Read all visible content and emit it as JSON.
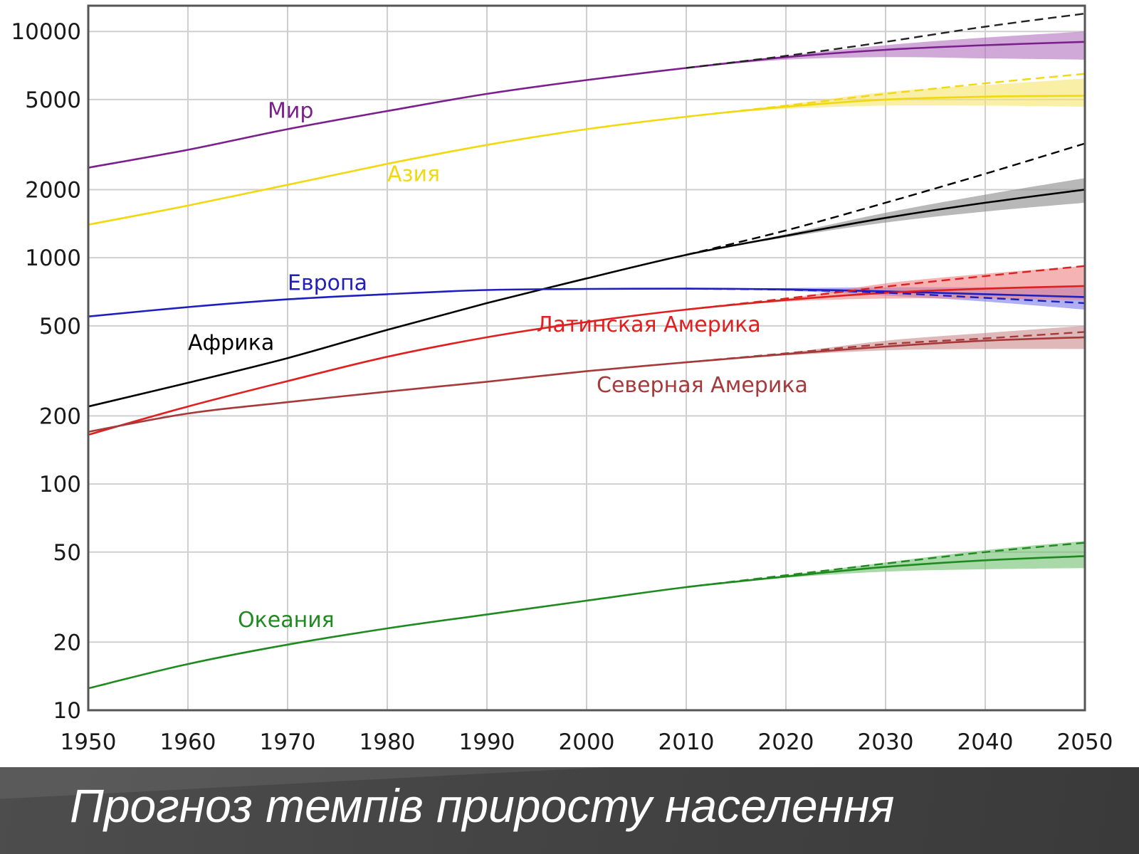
{
  "slide": {
    "title": "Прогноз темпів приросту населення"
  },
  "chart_data": {
    "type": "line",
    "y_scale": "log",
    "ylim": [
      10,
      13000
    ],
    "xlim": [
      1950,
      2050
    ],
    "grid": true,
    "x_ticks": [
      1950,
      1960,
      1970,
      1980,
      1990,
      2000,
      2010,
      2020,
      2030,
      2040,
      2050
    ],
    "y_ticks": [
      10,
      20,
      50,
      100,
      200,
      500,
      1000,
      2000,
      5000,
      10000
    ],
    "x": [
      1950,
      1960,
      1970,
      1980,
      1990,
      2000,
      2010,
      2020,
      2030,
      2040,
      2050
    ],
    "series": [
      {
        "name": "Мир",
        "color": "#7b1f8c",
        "band_color": "#b070c0",
        "values": [
          2500,
          3000,
          3700,
          4450,
          5300,
          6100,
          6900,
          7700,
          8300,
          8700,
          9000
        ],
        "dashed_upper": [
          null,
          null,
          null,
          null,
          null,
          null,
          6900,
          7800,
          9000,
          10500,
          12000
        ],
        "band_low": [
          null,
          null,
          null,
          null,
          null,
          null,
          null,
          7500,
          7700,
          7600,
          7500
        ],
        "band_high": [
          null,
          null,
          null,
          null,
          null,
          null,
          null,
          7800,
          8700,
          9400,
          10000
        ]
      },
      {
        "name": "Азия",
        "color": "#f2d80f",
        "band_color": "#f5e46a",
        "values": [
          1400,
          1700,
          2100,
          2600,
          3150,
          3700,
          4200,
          4650,
          5000,
          5150,
          5200
        ],
        "dashed_upper": [
          null,
          null,
          null,
          null,
          null,
          null,
          4200,
          4700,
          5300,
          5900,
          6500
        ],
        "band_low": [
          null,
          null,
          null,
          null,
          null,
          null,
          null,
          4550,
          4700,
          4700,
          4650
        ],
        "band_high": [
          null,
          null,
          null,
          null,
          null,
          null,
          null,
          4750,
          5400,
          5800,
          6200
        ]
      },
      {
        "name": "Африка",
        "color": "#000000",
        "band_color": "#888888",
        "values": [
          220,
          280,
          360,
          480,
          630,
          810,
          1030,
          1250,
          1500,
          1750,
          2000
        ],
        "dashed_upper": [
          null,
          null,
          null,
          null,
          null,
          null,
          1030,
          1320,
          1750,
          2350,
          3200
        ],
        "band_low": [
          null,
          null,
          null,
          null,
          null,
          null,
          null,
          1230,
          1430,
          1600,
          1750
        ],
        "band_high": [
          null,
          null,
          null,
          null,
          null,
          null,
          null,
          1270,
          1580,
          1900,
          2250
        ]
      },
      {
        "name": "Европа",
        "color": "#1f1fbf",
        "band_color": "#7a7ae8",
        "values": [
          550,
          605,
          655,
          690,
          720,
          728,
          730,
          725,
          710,
          690,
          670
        ],
        "dashed_upper": [
          null,
          null,
          null,
          null,
          null,
          null,
          730,
          722,
          700,
          665,
          630
        ],
        "band_low": [
          null,
          null,
          null,
          null,
          null,
          null,
          null,
          715,
          680,
          640,
          590
        ],
        "band_high": [
          null,
          null,
          null,
          null,
          null,
          null,
          null,
          735,
          740,
          740,
          740
        ]
      },
      {
        "name": "Латинская Америка",
        "color": "#e01f1f",
        "band_color": "#f08080",
        "values": [
          165,
          220,
          285,
          365,
          445,
          520,
          590,
          650,
          700,
          730,
          750
        ],
        "dashed_upper": [
          null,
          null,
          null,
          null,
          null,
          null,
          590,
          660,
          745,
          830,
          920
        ],
        "band_low": [
          null,
          null,
          null,
          null,
          null,
          null,
          null,
          640,
          660,
          660,
          650
        ],
        "band_high": [
          null,
          null,
          null,
          null,
          null,
          null,
          null,
          660,
          770,
          850,
          920
        ]
      },
      {
        "name": "Северная Америка",
        "color": "#a63a3a",
        "band_color": "#c98a8a",
        "values": [
          170,
          205,
          230,
          256,
          283,
          315,
          345,
          375,
          405,
          430,
          445
        ],
        "dashed_upper": [
          null,
          null,
          null,
          null,
          null,
          null,
          345,
          378,
          415,
          440,
          470
        ],
        "band_low": [
          null,
          null,
          null,
          null,
          null,
          null,
          null,
          370,
          390,
          395,
          395
        ],
        "band_high": [
          null,
          null,
          null,
          null,
          null,
          null,
          null,
          380,
          430,
          465,
          500
        ]
      },
      {
        "name": "Океания",
        "color": "#1f8a1f",
        "band_color": "#70c070",
        "values": [
          12.5,
          16,
          19.5,
          23,
          26.5,
          30.5,
          35,
          39,
          43,
          46,
          48
        ],
        "dashed_upper": [
          null,
          null,
          null,
          null,
          null,
          null,
          35,
          39.5,
          44.5,
          50,
          55
        ],
        "band_low": [
          null,
          null,
          null,
          null,
          null,
          null,
          null,
          38.5,
          41,
          42,
          42.5
        ],
        "band_high": [
          null,
          null,
          null,
          null,
          null,
          null,
          null,
          39.5,
          45,
          51,
          56
        ]
      }
    ]
  }
}
